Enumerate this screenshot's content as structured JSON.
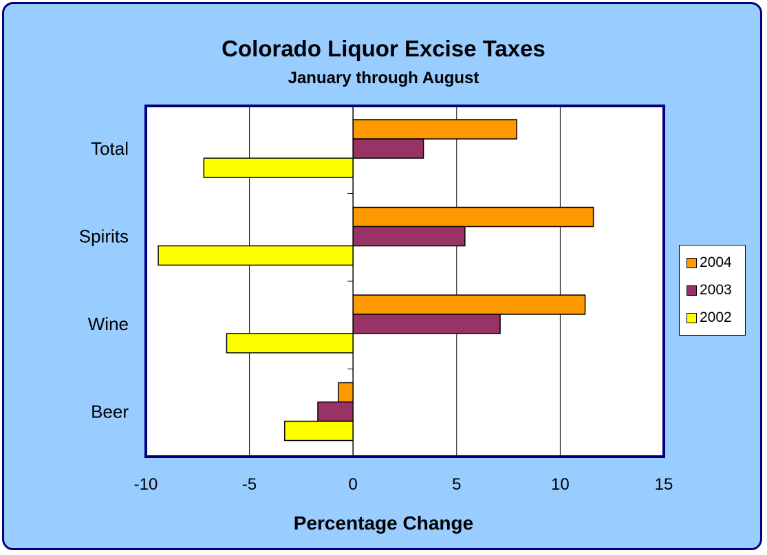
{
  "chart_data": {
    "type": "bar",
    "orientation": "horizontal",
    "title": "Colorado Liquor Excise Taxes",
    "subtitle": "January through August",
    "xlabel": "Percentage Change",
    "ylabel": "",
    "xlim": [
      -10,
      15
    ],
    "xticks": [
      "-10",
      "-5",
      "0",
      "5",
      "10",
      "15"
    ],
    "categories": [
      "Total",
      "Spirits",
      "Wine",
      "Beer"
    ],
    "series": [
      {
        "name": "2004",
        "color": "#ff9900",
        "values": [
          7.9,
          11.6,
          11.2,
          -0.7
        ]
      },
      {
        "name": "2003",
        "color": "#993366",
        "values": [
          3.4,
          5.4,
          7.1,
          -1.7
        ]
      },
      {
        "name": "2002",
        "color": "#ffff00",
        "values": [
          -7.2,
          -9.4,
          -6.1,
          -3.3
        ]
      }
    ],
    "grid": true,
    "legend": "right"
  }
}
